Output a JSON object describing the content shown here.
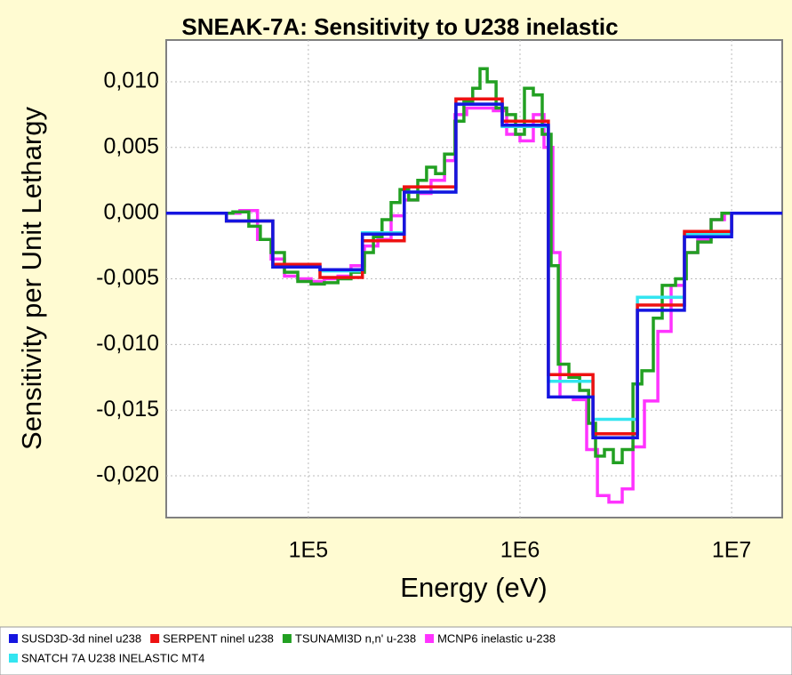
{
  "chart_data": {
    "type": "step",
    "title": "SNEAK-7A: Sensitivity to U238 inelastic",
    "x_label": "Energy (eV)",
    "y_label": "Sensitivity per Unit Lethargy",
    "xscale": "log",
    "xlim": [
      21300,
      17340000
    ],
    "xticks": [
      {
        "value": 100000,
        "label": "1E5"
      },
      {
        "value": 1000000,
        "label": "1E6"
      },
      {
        "value": 10000000,
        "label": "1E7"
      }
    ],
    "ylim": [
      -0.02318,
      0.01318
    ],
    "yticks": [
      {
        "value": 0.01,
        "label": "0,010"
      },
      {
        "value": 0.005,
        "label": "0,005"
      },
      {
        "value": 0,
        "label": "0,000"
      },
      {
        "value": -0.005,
        "label": "-0,005"
      },
      {
        "value": -0.01,
        "label": "-0,010"
      },
      {
        "value": -0.015,
        "label": "-0,015"
      },
      {
        "value": -0.02,
        "label": "-0,020"
      }
    ],
    "grid": true,
    "legend": "bottom",
    "series": [
      {
        "name": "MCNP6 inelastic u-238",
        "color": "#ff33ff",
        "x": [
          21300,
          47500,
          57500,
          66700,
          77100,
          89100,
          103000,
          119000,
          138000,
          159000,
          184000,
          213000,
          246000,
          284000,
          329000,
          380000,
          440000,
          493000,
          560000,
          647000,
          748000,
          865000,
          1000000,
          1156000,
          1298000,
          1430000,
          1545000,
          1786000,
          2066000,
          2322000,
          2630000,
          3041000,
          3418000,
          3873000,
          4480000,
          5176000,
          5984000,
          6918000,
          8000000,
          9247000
        ],
        "values": [
          0,
          0.0002,
          -0.002,
          -0.0035,
          -0.0048,
          -0.005,
          -0.0052,
          -0.005,
          -0.0048,
          -0.004,
          -0.0025,
          -0.002,
          -0.0002,
          0.001,
          0.0015,
          0.0025,
          0.004,
          0.0075,
          0.008,
          0.008,
          0.0078,
          0.006,
          0.0055,
          0.0075,
          0.005,
          -0.003,
          -0.014,
          -0.0142,
          -0.018,
          -0.0215,
          -0.022,
          -0.021,
          -0.0178,
          -0.0143,
          -0.009,
          -0.0055,
          -0.003,
          -0.002,
          -0.0005,
          0
        ]
      },
      {
        "name": "TSUNAMI3D n,n' u-238",
        "color": "#22a022",
        "x": [
          21300,
          44000,
          52300,
          59300,
          66700,
          77100,
          89100,
          103000,
          119000,
          138000,
          159000,
          184000,
          203000,
          223000,
          246000,
          271000,
          298000,
          329000,
          362000,
          399000,
          440000,
          493000,
          543000,
          598000,
          647000,
          700000,
          771000,
          865000,
          953000,
          1050000,
          1156000,
          1274000,
          1403000,
          1517000,
          1702000,
          1914000,
          2109000,
          2276000,
          2506000,
          2761000,
          3041000,
          3418000,
          3765000,
          4266000,
          4699000,
          5433000,
          6109000,
          6918000,
          8000000,
          8990000
        ],
        "values": [
          0,
          0.0001,
          -0.001,
          -0.002,
          -0.003,
          -0.0045,
          -0.0052,
          -0.0054,
          -0.0053,
          -0.005,
          -0.0045,
          -0.003,
          -0.0018,
          -0.0005,
          0.0008,
          0.0018,
          0.001,
          0.0025,
          0.0035,
          0.003,
          0.0045,
          0.007,
          0.0085,
          0.0095,
          0.011,
          0.01,
          0.008,
          0.0075,
          0.006,
          0.0095,
          0.009,
          0.006,
          -0.004,
          -0.0115,
          -0.0125,
          -0.0135,
          -0.016,
          -0.0185,
          -0.018,
          -0.019,
          -0.018,
          -0.013,
          -0.012,
          -0.008,
          -0.0055,
          -0.005,
          -0.003,
          -0.0022,
          -0.0005,
          0
        ]
      },
      {
        "name": "SNATCH 7A U238 INELASTIC MT4",
        "color": "#33e5f0",
        "x": [
          21300,
          41000,
          67900,
          113500,
          180000,
          284000,
          498000,
          824000,
          1362000,
          2213000,
          3589000,
          5984000,
          10000000
        ],
        "values": [
          0,
          -0.0006,
          -0.0041,
          -0.0044,
          -0.0015,
          0.0016,
          0.0083,
          0.0066,
          -0.0128,
          -0.0157,
          -0.0064,
          -0.0016,
          0
        ]
      },
      {
        "name": "SERPENT ninel u238",
        "color": "#ee1111",
        "x": [
          21300,
          41000,
          67900,
          113500,
          180000,
          284000,
          498000,
          824000,
          1362000,
          2213000,
          3589000,
          5984000,
          10000000
        ],
        "values": [
          0,
          -0.0006,
          -0.0039,
          -0.0049,
          -0.0021,
          0.002,
          0.0087,
          0.007,
          -0.0123,
          -0.0168,
          -0.007,
          -0.0014,
          0
        ]
      },
      {
        "name": "SUSD3D-3d ninel u238",
        "color": "#1515e0",
        "x": [
          21300,
          41000,
          67900,
          113500,
          180000,
          284000,
          498000,
          824000,
          1362000,
          2213000,
          3589000,
          5984000,
          10000000
        ],
        "values": [
          0,
          -0.0006,
          -0.0041,
          -0.0043,
          -0.0016,
          0.0016,
          0.0083,
          0.0067,
          -0.014,
          -0.0171,
          -0.0074,
          -0.0018,
          0
        ]
      }
    ],
    "legend_order": [
      4,
      3,
      1,
      0,
      2
    ]
  }
}
